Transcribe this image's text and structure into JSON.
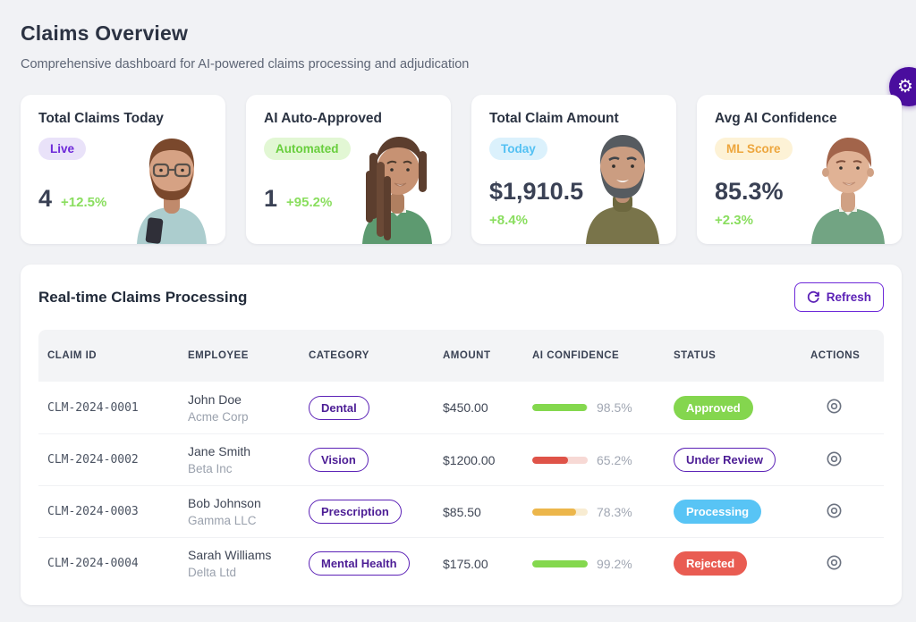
{
  "page": {
    "title": "Claims Overview",
    "subtitle": "Comprehensive dashboard for AI-powered claims processing and adjudication"
  },
  "fab": {
    "icon": "gear-icon",
    "glyph": "⚙",
    "color": "#4a0d9e"
  },
  "stats": [
    {
      "title": "Total Claims Today",
      "badge": {
        "label": "Live",
        "variant": "live"
      },
      "value": "4",
      "delta": "+12.5%",
      "avatar": "man-beard-glasses-teal-shirt"
    },
    {
      "title": "AI Auto-Approved",
      "badge": {
        "label": "Automated",
        "variant": "automated"
      },
      "value": "1",
      "delta": "+95.2%",
      "avatar": "person-dreadlocks-green-sweater"
    },
    {
      "title": "Total Claim Amount",
      "badge": {
        "label": "Today",
        "variant": "today"
      },
      "value": "$1,910.5",
      "delta": "+8.4%",
      "avatar": "man-gray-beard-olive-shirt"
    },
    {
      "title": "Avg AI Confidence",
      "badge": {
        "label": "ML Score",
        "variant": "ml-score"
      },
      "value": "85.3%",
      "delta": "+2.3%",
      "avatar": "man-brown-hair-green-sweater"
    }
  ],
  "panel": {
    "title": "Real-time Claims Processing",
    "refresh_label": "Refresh"
  },
  "table": {
    "columns": [
      "Claim ID",
      "Employee",
      "Category",
      "Amount",
      "AI Confidence",
      "Status",
      "Actions"
    ],
    "rows": [
      {
        "claim_id": "CLM-2024-0001",
        "employee": {
          "name": "John Doe",
          "company": "Acme Corp"
        },
        "category": "Dental",
        "amount": "$450.00",
        "confidence": {
          "value": 98.5,
          "label": "98.5%",
          "color": "green"
        },
        "status": {
          "label": "Approved",
          "variant": "approved"
        }
      },
      {
        "claim_id": "CLM-2024-0002",
        "employee": {
          "name": "Jane Smith",
          "company": "Beta Inc"
        },
        "category": "Vision",
        "amount": "$1200.00",
        "confidence": {
          "value": 65.2,
          "label": "65.2%",
          "color": "red"
        },
        "status": {
          "label": "Under Review",
          "variant": "under-review"
        }
      },
      {
        "claim_id": "CLM-2024-0003",
        "employee": {
          "name": "Bob Johnson",
          "company": "Gamma LLC"
        },
        "category": "Prescription",
        "amount": "$85.50",
        "confidence": {
          "value": 78.3,
          "label": "78.3%",
          "color": "orange"
        },
        "status": {
          "label": "Processing",
          "variant": "processing"
        }
      },
      {
        "claim_id": "CLM-2024-0004",
        "employee": {
          "name": "Sarah Williams",
          "company": "Delta Ltd"
        },
        "category": "Mental Health",
        "amount": "$175.00",
        "confidence": {
          "value": 99.2,
          "label": "99.2%",
          "color": "green"
        },
        "status": {
          "label": "Rejected",
          "variant": "rejected"
        }
      }
    ]
  },
  "colors": {
    "accent_purple": "#5b21b6",
    "fab_purple": "#4a0d9e",
    "approved_green": "#84d64e",
    "processing_blue": "#58c4f5",
    "rejected_red": "#e95c52",
    "delta_green": "#8ade5f",
    "page_bg": "#f1f2f5"
  }
}
